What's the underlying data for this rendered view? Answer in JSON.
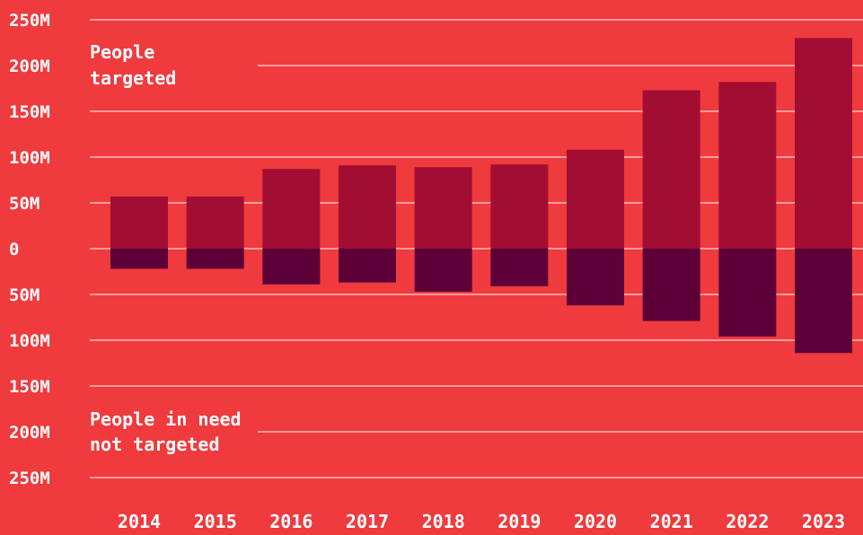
{
  "chart_data": {
    "type": "bar",
    "categories": [
      "2014",
      "2015",
      "2016",
      "2017",
      "2018",
      "2019",
      "2020",
      "2021",
      "2022",
      "2023"
    ],
    "series": [
      {
        "values": [
          57,
          57,
          87,
          91,
          89,
          92,
          108,
          173,
          182,
          230
        ],
        "color": "#A20E33"
      },
      {
        "values": [
          -22,
          -22,
          -39,
          -37,
          -47,
          -41,
          -62,
          -79,
          -96,
          -114
        ],
        "color": "#5E0038"
      }
    ],
    "ylim": [
      -250,
      250
    ],
    "y_ticks": [
      {
        "value": 250,
        "label": "250M"
      },
      {
        "value": 200,
        "label": "200M"
      },
      {
        "value": 150,
        "label": "150M"
      },
      {
        "value": 100,
        "label": "100M"
      },
      {
        "value": 50,
        "label": "50M"
      },
      {
        "value": 0,
        "label": "0"
      },
      {
        "value": -50,
        "label": "50M"
      },
      {
        "value": -100,
        "label": "100M"
      },
      {
        "value": -150,
        "label": "150M"
      },
      {
        "value": -200,
        "label": "200M"
      },
      {
        "value": -250,
        "label": "250M"
      }
    ],
    "annotations": {
      "top": [
        "People",
        "targeted"
      ],
      "bottom": [
        "People in need",
        "not targeted"
      ]
    },
    "grid": true,
    "background": "#EF3A3E",
    "grid_color": "#FFFFFF"
  }
}
